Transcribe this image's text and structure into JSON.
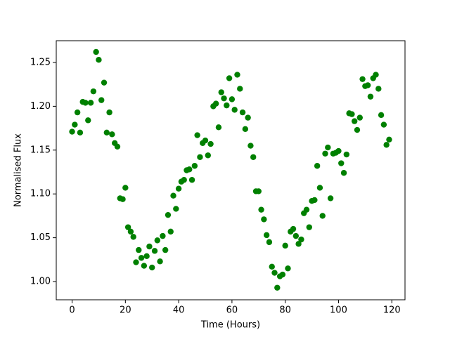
{
  "chart_data": {
    "type": "scatter",
    "xlabel": "Time (Hours)",
    "ylabel": "Normalised Flux",
    "color": "#008000",
    "x": [
      0,
      1,
      2,
      3,
      4,
      5,
      6,
      7,
      8,
      9,
      10,
      11,
      12,
      13,
      14,
      15,
      16,
      17,
      18,
      19,
      20,
      21,
      22,
      23,
      24,
      25,
      26,
      27,
      28,
      29,
      30,
      31,
      32,
      33,
      34,
      35,
      36,
      37,
      38,
      39,
      40,
      41,
      42,
      43,
      44,
      45,
      46,
      47,
      48,
      49,
      50,
      51,
      52,
      53,
      54,
      55,
      56,
      57,
      58,
      59,
      60,
      61,
      62,
      63,
      64,
      65,
      66,
      67,
      68,
      69,
      70,
      71,
      72,
      73,
      74,
      75,
      76,
      77,
      78,
      79,
      80,
      81,
      82,
      83,
      84,
      85,
      86,
      87,
      88,
      89,
      90,
      91,
      92,
      93,
      94,
      95,
      96,
      97,
      98,
      99,
      100,
      101,
      102,
      103,
      104,
      105,
      106,
      107,
      108,
      109,
      110,
      111,
      112,
      113,
      114,
      115,
      116,
      117,
      118,
      119
    ],
    "y": [
      1.171,
      1.179,
      1.193,
      1.17,
      1.205,
      1.204,
      1.184,
      1.204,
      1.217,
      1.262,
      1.253,
      1.207,
      1.227,
      1.17,
      1.193,
      1.168,
      1.158,
      1.154,
      1.095,
      1.094,
      1.107,
      1.062,
      1.057,
      1.051,
      1.022,
      1.036,
      1.027,
      1.018,
      1.029,
      1.04,
      1.016,
      1.035,
      1.047,
      1.023,
      1.052,
      1.036,
      1.076,
      1.057,
      1.098,
      1.083,
      1.106,
      1.114,
      1.116,
      1.127,
      1.128,
      1.116,
      1.132,
      1.167,
      1.142,
      1.158,
      1.161,
      1.144,
      1.157,
      1.2,
      1.203,
      1.176,
      1.216,
      1.209,
      1.201,
      1.232,
      1.208,
      1.196,
      1.236,
      1.22,
      1.193,
      1.174,
      1.187,
      1.155,
      1.142,
      1.103,
      1.103,
      1.082,
      1.071,
      1.053,
      1.045,
      1.017,
      1.01,
      0.993,
      1.006,
      1.008,
      1.041,
      1.015,
      1.057,
      1.06,
      1.052,
      1.043,
      1.048,
      1.078,
      1.082,
      1.062,
      1.092,
      1.093,
      1.132,
      1.107,
      1.075,
      1.146,
      1.153,
      1.095,
      1.146,
      1.147,
      1.149,
      1.135,
      1.124,
      1.145,
      1.192,
      1.191,
      1.183,
      1.173,
      1.187,
      1.231,
      1.223,
      1.224,
      1.211,
      1.232,
      1.236,
      1.22,
      1.19,
      1.179,
      1.156,
      1.162
    ],
    "xlim": [
      -5.95,
      124.95
    ],
    "ylim": [
      0.9792,
      1.2748
    ],
    "xticks": [
      0,
      20,
      40,
      60,
      80,
      100,
      120
    ],
    "yticks": [
      {
        "value": 1,
        "label": "1.00"
      },
      1.05,
      {
        "value": 1.1,
        "label": "1.10"
      },
      1.15,
      {
        "value": 1.2,
        "label": "1.20"
      },
      1.25
    ]
  }
}
